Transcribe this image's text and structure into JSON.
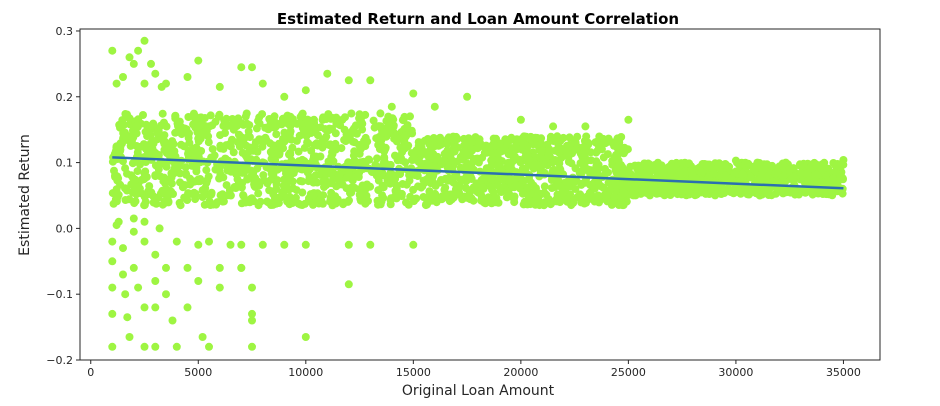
{
  "chart_data": {
    "type": "scatter",
    "title": "Estimated Return and Loan Amount Correlation",
    "xlabel": "Original Loan Amount",
    "ylabel": "Estimated Return",
    "xlim": [
      -500,
      36700
    ],
    "ylim": [
      -0.2,
      0.303
    ],
    "x_ticks": [
      0,
      5000,
      10000,
      15000,
      20000,
      25000,
      30000,
      35000
    ],
    "x_tick_labels": [
      "0",
      "5000",
      "10000",
      "15000",
      "20000",
      "25000",
      "30000",
      "35000"
    ],
    "y_ticks": [
      -0.2,
      -0.1,
      0.0,
      0.1,
      0.2,
      0.3
    ],
    "y_tick_labels": [
      "−0.2",
      "−0.1",
      "0.0",
      "0.1",
      "0.2",
      "0.3"
    ],
    "grid": false,
    "legend": "none",
    "point_color": "#9ef542",
    "line_color": "#2b6fb0",
    "regression_line": {
      "x": [
        1000,
        35000
      ],
      "y": [
        0.108,
        0.061
      ]
    },
    "dense_band": [
      {
        "x": [
          1000,
          15000
        ],
        "y_min": 0.035,
        "y_max": 0.175
      },
      {
        "x": [
          15000,
          25000
        ],
        "y_min": 0.035,
        "y_max": 0.14
      },
      {
        "x": [
          25000,
          35000
        ],
        "y_min": 0.05,
        "y_max": 0.1
      }
    ],
    "outlier_points": [
      [
        1000,
        0.27
      ],
      [
        1200,
        0.22
      ],
      [
        1500,
        0.23
      ],
      [
        1800,
        0.26
      ],
      [
        2000,
        0.25
      ],
      [
        2200,
        0.27
      ],
      [
        2500,
        0.285
      ],
      [
        2500,
        0.22
      ],
      [
        2800,
        0.25
      ],
      [
        3000,
        0.235
      ],
      [
        3300,
        0.215
      ],
      [
        3500,
        0.22
      ],
      [
        4500,
        0.23
      ],
      [
        5000,
        0.255
      ],
      [
        6000,
        0.215
      ],
      [
        7000,
        0.245
      ],
      [
        7500,
        0.245
      ],
      [
        8000,
        0.22
      ],
      [
        9000,
        0.2
      ],
      [
        10000,
        0.21
      ],
      [
        11000,
        0.235
      ],
      [
        12000,
        0.225
      ],
      [
        13000,
        0.225
      ],
      [
        14000,
        0.185
      ],
      [
        15000,
        0.205
      ],
      [
        16000,
        0.185
      ],
      [
        17500,
        0.2
      ],
      [
        20000,
        0.165
      ],
      [
        21500,
        0.155
      ],
      [
        23000,
        0.155
      ],
      [
        25000,
        0.165
      ],
      [
        30000,
        0.103
      ],
      [
        31000,
        0.1
      ],
      [
        33000,
        0.095
      ],
      [
        34000,
        0.09
      ],
      [
        35000,
        0.104
      ],
      [
        1000,
        -0.02
      ],
      [
        1000,
        -0.05
      ],
      [
        1000,
        -0.09
      ],
      [
        1000,
        -0.13
      ],
      [
        1000,
        -0.18
      ],
      [
        1300,
        0.01
      ],
      [
        1500,
        -0.03
      ],
      [
        1500,
        -0.07
      ],
      [
        1600,
        -0.1
      ],
      [
        1700,
        -0.135
      ],
      [
        1800,
        -0.165
      ],
      [
        2000,
        -0.005
      ],
      [
        2000,
        -0.06
      ],
      [
        2200,
        -0.09
      ],
      [
        2500,
        -0.02
      ],
      [
        2500,
        -0.12
      ],
      [
        2500,
        -0.18
      ],
      [
        3000,
        -0.04
      ],
      [
        3000,
        -0.08
      ],
      [
        3000,
        -0.12
      ],
      [
        3000,
        -0.18
      ],
      [
        3200,
        0.0
      ],
      [
        3500,
        -0.06
      ],
      [
        3500,
        -0.1
      ],
      [
        3800,
        -0.14
      ],
      [
        4000,
        -0.02
      ],
      [
        4000,
        -0.18
      ],
      [
        4500,
        -0.12
      ],
      [
        4500,
        -0.06
      ],
      [
        5000,
        -0.025
      ],
      [
        5000,
        -0.08
      ],
      [
        5200,
        -0.165
      ],
      [
        5500,
        -0.18
      ],
      [
        5500,
        -0.02
      ],
      [
        6000,
        -0.06
      ],
      [
        6000,
        -0.09
      ],
      [
        6500,
        -0.025
      ],
      [
        7000,
        -0.025
      ],
      [
        7000,
        -0.06
      ],
      [
        7500,
        -0.09
      ],
      [
        7500,
        -0.13
      ],
      [
        7500,
        -0.14
      ],
      [
        7500,
        -0.18
      ],
      [
        7000,
        -0.06
      ],
      [
        8000,
        -0.025
      ],
      [
        9000,
        -0.025
      ],
      [
        10000,
        -0.025
      ],
      [
        10000,
        -0.165
      ],
      [
        12000,
        -0.025
      ],
      [
        12000,
        -0.085
      ],
      [
        13000,
        -0.025
      ],
      [
        15000,
        -0.025
      ],
      [
        2000,
        0.015
      ],
      [
        2500,
        0.01
      ],
      [
        1200,
        0.005
      ]
    ]
  }
}
